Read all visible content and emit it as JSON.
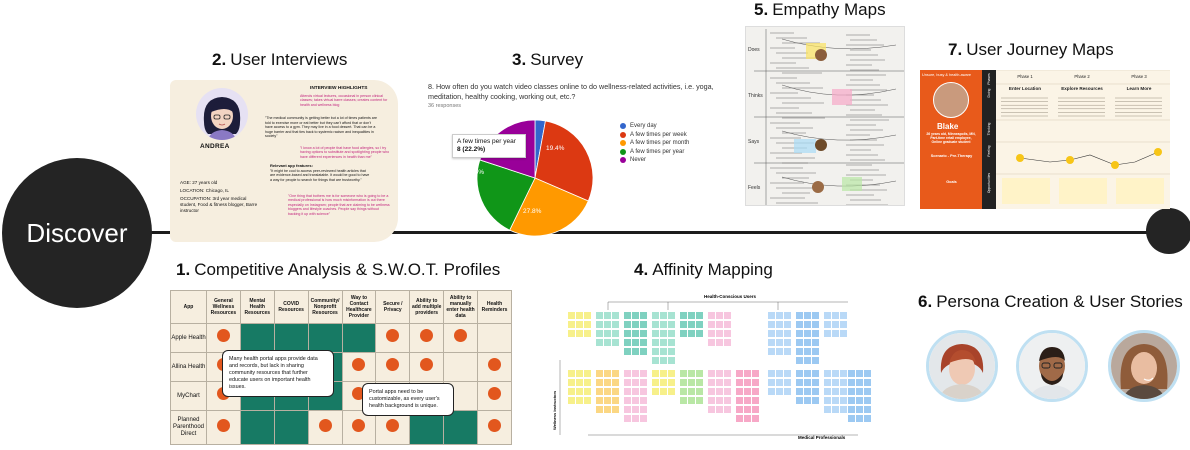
{
  "timeline": {
    "start_label": "Discover"
  },
  "sections": {
    "interviews": {
      "number": "2.",
      "label": "User Interviews"
    },
    "survey": {
      "number": "3.",
      "label": "Survey"
    },
    "empathy": {
      "number": "5.",
      "label": "Empathy Maps"
    },
    "journey": {
      "number": "7.",
      "label": "User Journey Maps"
    },
    "competitive": {
      "number": "1.",
      "label": "Competitive Analysis & S.W.O.T. Profiles"
    },
    "affinity": {
      "number": "4.",
      "label": "Affinity Mapping"
    },
    "persona": {
      "number": "6.",
      "label": "Persona Creation & User Stories"
    }
  },
  "interview_card": {
    "name": "ANDREA",
    "highlights_title": "INTERVIEW HIGHLIGHTS",
    "age": "AGE: 27 years old",
    "location": "LOCATION: Chicago, IL",
    "occupation": "OCCUPATION: 3rd year medical student, Food & fitness blogger, Barre instructor",
    "quote_1": "Attends virtual lectures, occasional in person clinical classes; takes virtual barre classes; creates content for health and wellness blog",
    "quote_2": "\"The medical community is getting better but a lot of times patients are told to exercise more or eat better but they can't afford that or don't have access to a gym. They may live in a food dessert. That can be a huge barrier and that ties back to systemic racism and inequalities in society\"",
    "quote_3": "\"I know a lot of people that have food allergies, so I try having options to substitute and spotlighting people who have different experiences in health than me\"",
    "relevant_title": "Relevant app features:",
    "quote_4": "\"It might be cool to access peer-reviewed health articles that are evidence-based and translatable. It would be good to have a way for people to search for things that are trustworthy.\"",
    "quote_5": "\"One thing that bothers me is for someone who is going to be a medical professional is how much misinformation is out there especially on Instagram; people that are claiming to be wellness bloggers and lifestyle coaches. People say things without backing it up with science\""
  },
  "survey": {
    "question": "8. How often do you watch video classes online to do wellness-related activities, i.e. yoga, meditation, healthy cooking, working out, etc.?",
    "responses": "36 responses",
    "tooltip_label": "A few times per year",
    "tooltip_value": "8 (22.2%)",
    "slice_labels": [
      "19.4%",
      "27.8%",
      "25%"
    ]
  },
  "chart_data": {
    "type": "pie",
    "categories": [
      "Every day",
      "A few times per week",
      "A few times per month",
      "A few times per year",
      "Never"
    ],
    "values": [
      2.8,
      27.8,
      25.0,
      22.2,
      19.4
    ],
    "colors": [
      "#3366cc",
      "#dc3912",
      "#ff9900",
      "#109618",
      "#990099"
    ],
    "legend": "right"
  },
  "empathy_board": {
    "labels": [
      "Does",
      "Thinks",
      "Says",
      "Feels"
    ]
  },
  "journey_map": {
    "persona_header": "Unsure, busy & health-aware",
    "persona_name": "Blake",
    "persona_details": "26 years old, Minneapolis, MN, Part-time retail employee, Online graduate student",
    "scenario_title": "Scenario - Pre-Therapy",
    "goals_title": "Goals",
    "row_labels": [
      "Phases",
      "Doing",
      "Thinking",
      "Feeling",
      "Opportunities"
    ],
    "phases": [
      {
        "name": "Phase 1",
        "title": "Enter Location"
      },
      {
        "name": "Phase 2",
        "title": "Explore Resources"
      },
      {
        "name": "Phase 3",
        "title": "Learn More"
      }
    ]
  },
  "competitive_table": {
    "headers": [
      "App",
      "General Wellness Resources",
      "Mental Health Resources",
      "COVID Resources",
      "Community/ Nonprofit Resources",
      "Way to Contact Healthcare Provider",
      "Secure / Privacy",
      "Ability to add multiple providers",
      "Ability to manually enter health data",
      "Health Reminders"
    ],
    "rows": [
      {
        "app": "Apple Health",
        "cells": [
          "dot",
          "green",
          "green",
          "green",
          "green",
          "dot",
          "dot",
          "dot",
          "none"
        ]
      },
      {
        "app": "Allina Health",
        "cells": [
          "dot",
          "green",
          "green",
          "green",
          "dot",
          "dot",
          "dot",
          "none",
          "dot"
        ]
      },
      {
        "app": "MyChart",
        "cells": [
          "dot",
          "green",
          "green",
          "green",
          "dot",
          "dot",
          "dot",
          "none",
          "dot"
        ]
      },
      {
        "app": "Planned Parenthood Direct",
        "cells": [
          "dot",
          "green",
          "green",
          "dot",
          "dot",
          "dot",
          "green",
          "green",
          "dot"
        ]
      }
    ],
    "note_1": "Many health portal apps provide data and records, but lack in sharing community resources that further educate users on important health issues.",
    "note_2": "Portal apps need to be customizable, as every user's health background is unique."
  },
  "affinity_board": {
    "top_label": "Health-Conscious Users",
    "side_label": "Wellness Instructors",
    "bottom_label": "Medical Professionals"
  },
  "colors": {
    "timeline": "#1c1c1c",
    "green_cell": "#177a64",
    "orange_dot": "#e2571e",
    "card_bg": "#f6eedf",
    "journey_orange": "#e85a1b",
    "persona_ring": "#bfe0f2"
  }
}
